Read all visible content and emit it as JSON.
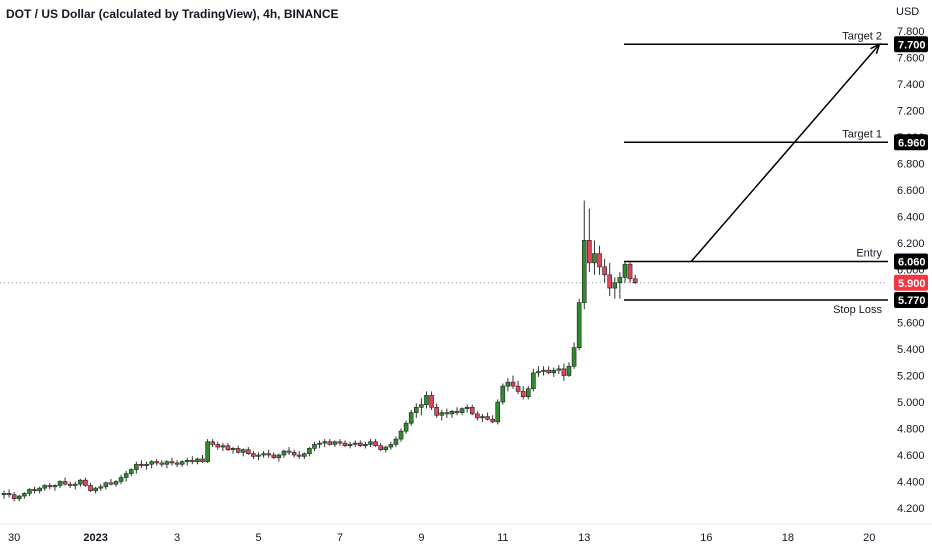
{
  "header": {
    "title": "DOT / US Dollar (calculated by TradingView), 4h, BINANCE"
  },
  "price_axis": {
    "currency": "USD"
  },
  "colors": {
    "up": "#26a69a",
    "up_fill": "#2e8b2e",
    "down": "#ef5350",
    "down_fill": "#e0455a",
    "line": "#000000",
    "current": "#f23645"
  },
  "chart_data": {
    "type": "candlestick",
    "title": "DOT / US Dollar (calculated by TradingView), 4h, BINANCE",
    "y_unit": "USD",
    "ylim": [
      4.1,
      7.85
    ],
    "y_ticks": [
      "4.200",
      "4.400",
      "4.600",
      "4.800",
      "5.000",
      "5.200",
      "5.400",
      "5.600",
      "5.800",
      "6.000",
      "6.200",
      "6.400",
      "6.600",
      "6.800",
      "7.000",
      "7.200",
      "7.400",
      "7.600",
      "7.800"
    ],
    "x_ticks": [
      {
        "label": "30",
        "bar": 2
      },
      {
        "label": "2023",
        "bar": 18
      },
      {
        "label": "3",
        "bar": 34
      },
      {
        "label": "5",
        "bar": 50
      },
      {
        "label": "7",
        "bar": 66
      },
      {
        "label": "9",
        "bar": 82
      },
      {
        "label": "11",
        "bar": 98
      },
      {
        "label": "13",
        "bar": 114
      },
      {
        "label": "16",
        "bar": 138
      },
      {
        "label": "18",
        "bar": 154
      },
      {
        "label": "20",
        "bar": 170
      }
    ],
    "candles": [
      [
        4.3,
        4.33,
        4.27,
        4.31
      ],
      [
        4.31,
        4.34,
        4.28,
        4.3
      ],
      [
        4.3,
        4.32,
        4.25,
        4.27
      ],
      [
        4.27,
        4.3,
        4.25,
        4.29
      ],
      [
        4.29,
        4.32,
        4.27,
        4.31
      ],
      [
        4.31,
        4.35,
        4.29,
        4.34
      ],
      [
        4.34,
        4.36,
        4.31,
        4.33
      ],
      [
        4.33,
        4.36,
        4.31,
        4.35
      ],
      [
        4.35,
        4.38,
        4.33,
        4.37
      ],
      [
        4.37,
        4.39,
        4.34,
        4.36
      ],
      [
        4.36,
        4.38,
        4.33,
        4.37
      ],
      [
        4.37,
        4.41,
        4.35,
        4.4
      ],
      [
        4.4,
        4.43,
        4.37,
        4.38
      ],
      [
        4.38,
        4.4,
        4.35,
        4.37
      ],
      [
        4.37,
        4.4,
        4.34,
        4.38
      ],
      [
        4.38,
        4.42,
        4.36,
        4.41
      ],
      [
        4.41,
        4.43,
        4.36,
        4.37
      ],
      [
        4.37,
        4.39,
        4.32,
        4.33
      ],
      [
        4.33,
        4.36,
        4.31,
        4.35
      ],
      [
        4.35,
        4.38,
        4.33,
        4.36
      ],
      [
        4.36,
        4.4,
        4.34,
        4.39
      ],
      [
        4.39,
        4.42,
        4.37,
        4.38
      ],
      [
        4.38,
        4.41,
        4.36,
        4.4
      ],
      [
        4.4,
        4.45,
        4.38,
        4.43
      ],
      [
        4.43,
        4.48,
        4.4,
        4.46
      ],
      [
        4.46,
        4.5,
        4.44,
        4.49
      ],
      [
        4.49,
        4.55,
        4.46,
        4.53
      ],
      [
        4.53,
        4.56,
        4.5,
        4.52
      ],
      [
        4.52,
        4.55,
        4.49,
        4.53
      ],
      [
        4.53,
        4.56,
        4.5,
        4.55
      ],
      [
        4.55,
        4.57,
        4.52,
        4.54
      ],
      [
        4.54,
        4.56,
        4.51,
        4.53
      ],
      [
        4.53,
        4.56,
        4.5,
        4.55
      ],
      [
        4.55,
        4.58,
        4.52,
        4.54
      ],
      [
        4.54,
        4.56,
        4.51,
        4.53
      ],
      [
        4.53,
        4.56,
        4.51,
        4.55
      ],
      [
        4.55,
        4.58,
        4.52,
        4.56
      ],
      [
        4.56,
        4.59,
        4.53,
        4.55
      ],
      [
        4.55,
        4.58,
        4.53,
        4.57
      ],
      [
        4.57,
        4.6,
        4.54,
        4.55
      ],
      [
        4.55,
        4.72,
        4.54,
        4.7
      ],
      [
        4.7,
        4.72,
        4.66,
        4.68
      ],
      [
        4.68,
        4.7,
        4.64,
        4.66
      ],
      [
        4.66,
        4.69,
        4.63,
        4.67
      ],
      [
        4.67,
        4.69,
        4.63,
        4.64
      ],
      [
        4.64,
        4.66,
        4.61,
        4.65
      ],
      [
        4.65,
        4.67,
        4.61,
        4.62
      ],
      [
        4.62,
        4.65,
        4.59,
        4.64
      ],
      [
        4.64,
        4.66,
        4.6,
        4.61
      ],
      [
        4.61,
        4.63,
        4.57,
        4.59
      ],
      [
        4.59,
        4.62,
        4.56,
        4.6
      ],
      [
        4.6,
        4.63,
        4.58,
        4.61
      ],
      [
        4.61,
        4.64,
        4.58,
        4.6
      ],
      [
        4.6,
        4.62,
        4.57,
        4.58
      ],
      [
        4.58,
        4.61,
        4.55,
        4.6
      ],
      [
        4.6,
        4.64,
        4.58,
        4.63
      ],
      [
        4.63,
        4.66,
        4.6,
        4.62
      ],
      [
        4.62,
        4.64,
        4.58,
        4.6
      ],
      [
        4.6,
        4.63,
        4.57,
        4.59
      ],
      [
        4.59,
        4.62,
        4.57,
        4.61
      ],
      [
        4.61,
        4.66,
        4.59,
        4.65
      ],
      [
        4.65,
        4.7,
        4.63,
        4.68
      ],
      [
        4.68,
        4.71,
        4.65,
        4.69
      ],
      [
        4.69,
        4.72,
        4.66,
        4.7
      ],
      [
        4.7,
        4.72,
        4.67,
        4.68
      ],
      [
        4.68,
        4.71,
        4.66,
        4.7
      ],
      [
        4.7,
        4.72,
        4.67,
        4.69
      ],
      [
        4.69,
        4.71,
        4.66,
        4.67
      ],
      [
        4.67,
        4.7,
        4.65,
        4.68
      ],
      [
        4.68,
        4.71,
        4.66,
        4.69
      ],
      [
        4.69,
        4.71,
        4.66,
        4.67
      ],
      [
        4.67,
        4.7,
        4.65,
        4.68
      ],
      [
        4.68,
        4.72,
        4.66,
        4.7
      ],
      [
        4.7,
        4.72,
        4.66,
        4.67
      ],
      [
        4.67,
        4.69,
        4.63,
        4.64
      ],
      [
        4.64,
        4.67,
        4.62,
        4.66
      ],
      [
        4.66,
        4.7,
        4.64,
        4.68
      ],
      [
        4.68,
        4.74,
        4.66,
        4.72
      ],
      [
        4.72,
        4.8,
        4.7,
        4.78
      ],
      [
        4.78,
        4.86,
        4.76,
        4.84
      ],
      [
        4.84,
        4.94,
        4.82,
        4.92
      ],
      [
        4.92,
        4.99,
        4.88,
        4.96
      ],
      [
        4.96,
        5.03,
        4.9,
        4.98
      ],
      [
        4.98,
        5.08,
        4.95,
        5.05
      ],
      [
        5.05,
        5.08,
        4.94,
        4.96
      ],
      [
        4.96,
        4.99,
        4.88,
        4.9
      ],
      [
        4.9,
        4.94,
        4.86,
        4.92
      ],
      [
        4.92,
        4.95,
        4.88,
        4.91
      ],
      [
        4.91,
        4.94,
        4.88,
        4.93
      ],
      [
        4.93,
        4.96,
        4.9,
        4.92
      ],
      [
        4.92,
        4.96,
        4.9,
        4.95
      ],
      [
        4.95,
        4.98,
        4.92,
        4.96
      ],
      [
        4.96,
        4.98,
        4.9,
        4.91
      ],
      [
        4.91,
        4.93,
        4.86,
        4.88
      ],
      [
        4.88,
        4.91,
        4.85,
        4.89
      ],
      [
        4.89,
        4.92,
        4.86,
        4.87
      ],
      [
        4.87,
        4.9,
        4.84,
        4.85
      ],
      [
        4.85,
        5.02,
        4.83,
        5.0
      ],
      [
        5.0,
        5.14,
        4.98,
        5.12
      ],
      [
        5.12,
        5.18,
        5.08,
        5.15
      ],
      [
        5.15,
        5.2,
        5.1,
        5.12
      ],
      [
        5.12,
        5.16,
        5.06,
        5.08
      ],
      [
        5.08,
        5.12,
        5.02,
        5.04
      ],
      [
        5.04,
        5.12,
        5.02,
        5.1
      ],
      [
        5.1,
        5.25,
        5.08,
        5.22
      ],
      [
        5.22,
        5.27,
        5.19,
        5.23
      ],
      [
        5.23,
        5.27,
        5.2,
        5.24
      ],
      [
        5.24,
        5.27,
        5.21,
        5.22
      ],
      [
        5.22,
        5.26,
        5.19,
        5.24
      ],
      [
        5.24,
        5.28,
        5.21,
        5.25
      ],
      [
        5.25,
        5.29,
        5.16,
        5.2
      ],
      [
        5.2,
        5.3,
        5.19,
        5.27
      ],
      [
        5.27,
        5.45,
        5.25,
        5.41
      ],
      [
        5.41,
        5.78,
        5.39,
        5.75
      ],
      [
        5.75,
        6.52,
        5.7,
        6.22
      ],
      [
        6.22,
        6.46,
        5.98,
        6.05
      ],
      [
        6.05,
        6.22,
        5.96,
        6.12
      ],
      [
        6.12,
        6.18,
        5.96,
        6.02
      ],
      [
        6.02,
        6.08,
        5.9,
        5.96
      ],
      [
        5.96,
        6.05,
        5.8,
        5.86
      ],
      [
        5.86,
        5.94,
        5.78,
        5.9
      ],
      [
        5.9,
        5.98,
        5.78,
        5.94
      ],
      [
        5.94,
        6.06,
        5.9,
        6.04
      ],
      [
        6.04,
        6.06,
        5.9,
        5.93
      ],
      [
        5.93,
        5.96,
        5.89,
        5.9
      ]
    ],
    "levels": [
      {
        "name": "Target 2",
        "price": 7.7,
        "tag": "7.700"
      },
      {
        "name": "Target 1",
        "price": 6.96,
        "tag": "6.960"
      },
      {
        "name": "Entry",
        "price": 6.06,
        "tag": "6.060"
      },
      {
        "name": "Stop Loss",
        "price": 5.77,
        "tag": "5.770"
      }
    ],
    "current_price": {
      "price": 5.9,
      "tag": "5.900"
    },
    "projection": {
      "from_bar": 135,
      "from_price": 6.06,
      "to_bar": 172,
      "to_price": 7.7
    }
  }
}
